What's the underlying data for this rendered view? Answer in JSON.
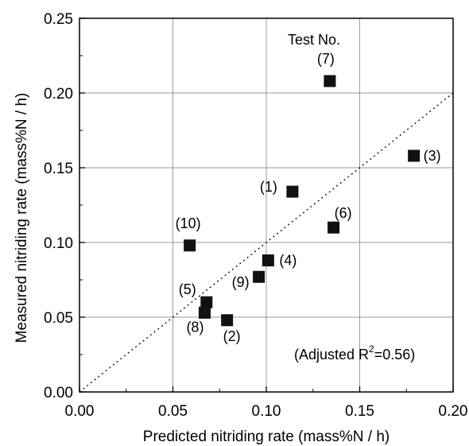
{
  "chart_data": {
    "type": "scatter",
    "title": "",
    "xlabel": "Predicted nitriding rate (mass%N / h)",
    "ylabel": "Measured nitriding rate (mass%N / h)",
    "xlim": [
      0.0,
      0.2
    ],
    "ylim": [
      0.0,
      0.25
    ],
    "x_ticks": [
      "0.00",
      "0.05",
      "0.10",
      "0.15",
      "0.20"
    ],
    "y_ticks": [
      "0.00",
      "0.05",
      "0.10",
      "0.15",
      "0.20",
      "0.25"
    ],
    "grid": true,
    "legend_title": "Test No.",
    "points": [
      {
        "label": "(1)",
        "x": 0.114,
        "y": 0.134
      },
      {
        "label": "(2)",
        "x": 0.079,
        "y": 0.048
      },
      {
        "label": "(3)",
        "x": 0.179,
        "y": 0.158
      },
      {
        "label": "(4)",
        "x": 0.101,
        "y": 0.088
      },
      {
        "label": "(5)",
        "x": 0.068,
        "y": 0.06
      },
      {
        "label": "(6)",
        "x": 0.136,
        "y": 0.11
      },
      {
        "label": "(7)",
        "x": 0.134,
        "y": 0.208
      },
      {
        "label": "(8)",
        "x": 0.067,
        "y": 0.053
      },
      {
        "label": "(9)",
        "x": 0.096,
        "y": 0.077
      },
      {
        "label": "(10)",
        "x": 0.059,
        "y": 0.098
      }
    ],
    "reference_line": {
      "style": "dotted",
      "from": [
        0.0,
        0.0
      ],
      "to": [
        0.2,
        0.2
      ]
    },
    "annotation_prefix": "(Adjusted R",
    "annotation_sup": "2",
    "annotation_suffix": "=0.56)"
  }
}
